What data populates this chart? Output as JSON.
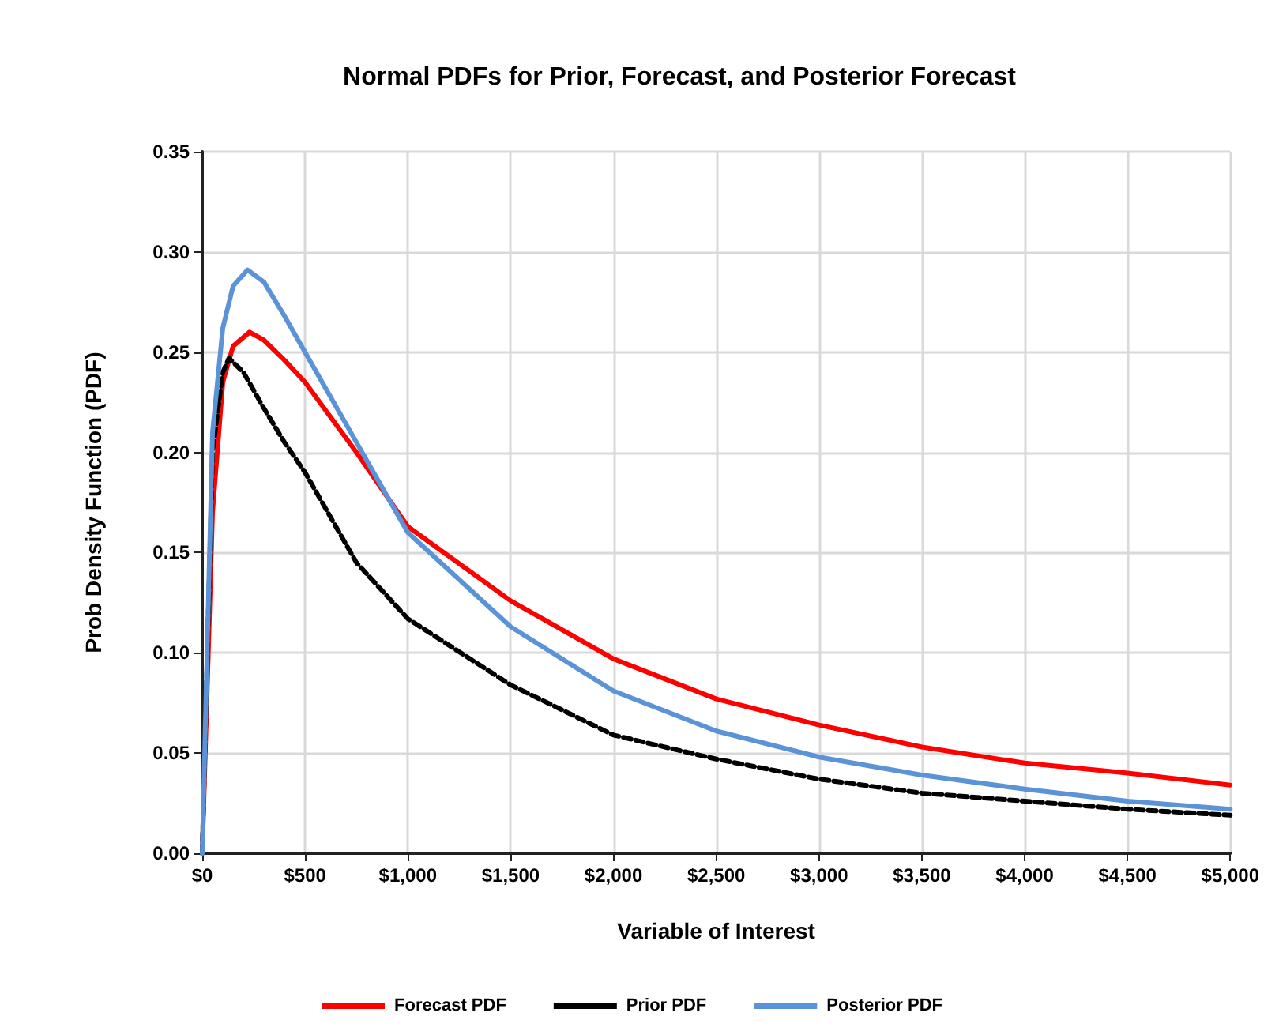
{
  "chart_data": {
    "type": "line",
    "title": "Normal PDFs for Prior, Forecast, and Posterior Forecast",
    "xlabel": "Variable of Interest",
    "ylabel": "Prob Density Function (PDF)",
    "series": [
      {
        "name": "Forecast PDF",
        "color": "#ff0000",
        "line_style": "solid",
        "x": [
          0,
          50,
          100,
          150,
          230,
          300,
          400,
          500,
          750,
          1000,
          1500,
          2000,
          2500,
          3000,
          3500,
          4000,
          4500,
          5000
        ],
        "values": [
          0,
          0.17,
          0.235,
          0.253,
          0.26,
          0.256,
          0.246,
          0.235,
          0.2,
          0.163,
          0.126,
          0.097,
          0.077,
          0.064,
          0.053,
          0.045,
          0.04,
          0.034
        ]
      },
      {
        "name": "Prior PDF",
        "color": "#000000",
        "line_style": "dashed",
        "x": [
          0,
          50,
          100,
          130,
          200,
          300,
          400,
          500,
          750,
          1000,
          1500,
          2000,
          2500,
          3000,
          3500,
          4000,
          4500,
          5000
        ],
        "values": [
          0,
          0.2,
          0.24,
          0.247,
          0.24,
          0.222,
          0.205,
          0.19,
          0.145,
          0.117,
          0.084,
          0.059,
          0.047,
          0.037,
          0.03,
          0.026,
          0.022,
          0.019
        ]
      },
      {
        "name": "Posterior PDF",
        "color": "#5b93d8",
        "line_style": "solid",
        "x": [
          0,
          50,
          100,
          150,
          220,
          300,
          400,
          500,
          750,
          1000,
          1500,
          2000,
          2500,
          3000,
          3500,
          4000,
          4500,
          5000
        ],
        "values": [
          0,
          0.21,
          0.262,
          0.283,
          0.291,
          0.285,
          0.268,
          0.25,
          0.205,
          0.16,
          0.113,
          0.081,
          0.061,
          0.048,
          0.039,
          0.032,
          0.026,
          0.022
        ]
      }
    ],
    "xlim": [
      0,
      5000
    ],
    "xticks": [
      {
        "value": 0,
        "label": "$0"
      },
      {
        "value": 500,
        "label": "$500"
      },
      {
        "value": 1000,
        "label": "$1,000"
      },
      {
        "value": 1500,
        "label": "$1,500"
      },
      {
        "value": 2000,
        "label": "$2,000"
      },
      {
        "value": 2500,
        "label": "$2,500"
      },
      {
        "value": 3000,
        "label": "$3,000"
      },
      {
        "value": 3500,
        "label": "$3,500"
      },
      {
        "value": 4000,
        "label": "$4,000"
      },
      {
        "value": 4500,
        "label": "$4,500"
      },
      {
        "value": 5000,
        "label": "$5,000"
      }
    ],
    "ylim": [
      0,
      0.35
    ],
    "yticks": [
      {
        "value": 0,
        "label": "0.00"
      },
      {
        "value": 0.05,
        "label": "0.05"
      },
      {
        "value": 0.1,
        "label": "0.10"
      },
      {
        "value": 0.15,
        "label": "0.15"
      },
      {
        "value": 0.2,
        "label": "0.20"
      },
      {
        "value": 0.25,
        "label": "0.25"
      },
      {
        "value": 0.3,
        "label": "0.30"
      },
      {
        "value": 0.35,
        "label": "0.35"
      }
    ],
    "grid": true,
    "legend": "bottom",
    "marker": "none"
  }
}
